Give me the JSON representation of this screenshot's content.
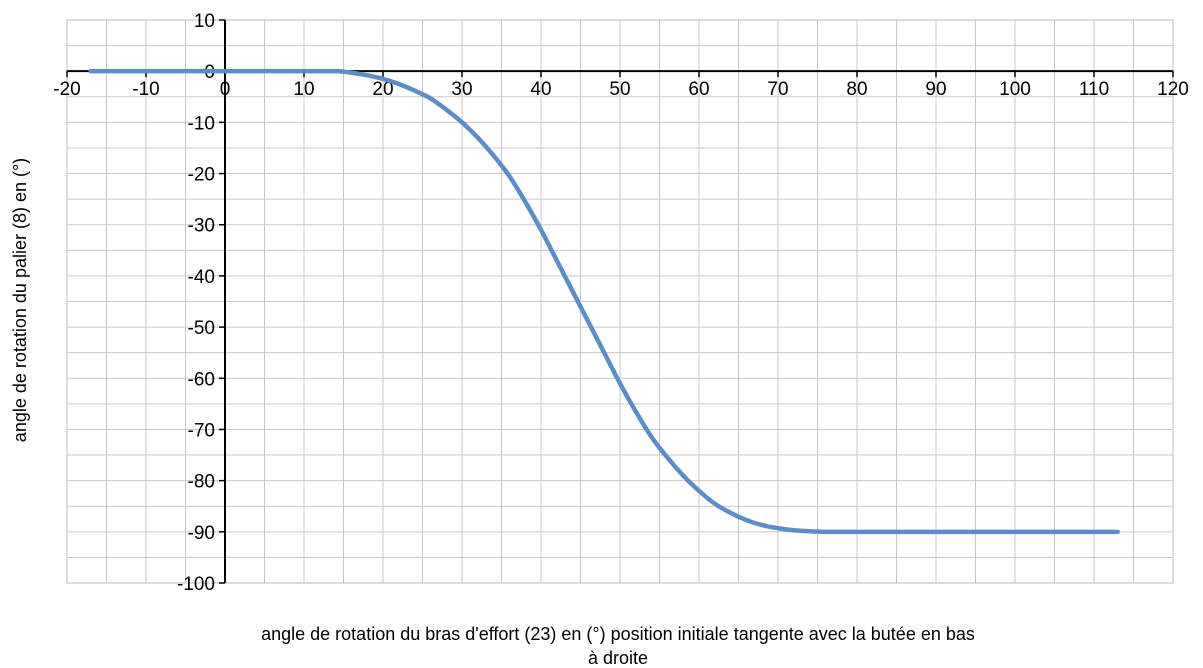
{
  "chart_data": {
    "type": "line",
    "title": "",
    "xlabel_lines": [
      "angle de rotation du bras d'effort (23) en (°) position initiale tangente avec la butée en bas",
      "à droite"
    ],
    "ylabel": "angle de rotation du palier (8) en (°)",
    "xlim": [
      -20,
      120
    ],
    "ylim": [
      -100,
      10
    ],
    "x_ticks": [
      "-20",
      "-10",
      "0",
      "10",
      "20",
      "30",
      "40",
      "50",
      "60",
      "70",
      "80",
      "90",
      "100",
      "110",
      "120"
    ],
    "y_ticks": [
      "10",
      "0",
      "-10",
      "-20",
      "-30",
      "-40",
      "-50",
      "-60",
      "-70",
      "-80",
      "-90",
      "-100"
    ],
    "minor_grid_step_x": 5,
    "minor_grid_step_y": 5,
    "grid": true,
    "legend": "none",
    "series": [
      {
        "color": "#5b8ec9",
        "points": [
          [
            -17,
            0
          ],
          [
            -10,
            0
          ],
          [
            0,
            0
          ],
          [
            10,
            0
          ],
          [
            14,
            0
          ],
          [
            16,
            -0.3
          ],
          [
            18,
            -0.8
          ],
          [
            20,
            -1.5
          ],
          [
            22,
            -2.5
          ],
          [
            24,
            -3.8
          ],
          [
            26,
            -5.3
          ],
          [
            28,
            -7.5
          ],
          [
            30,
            -10
          ],
          [
            32,
            -13
          ],
          [
            34,
            -16.5
          ],
          [
            36,
            -20.5
          ],
          [
            38,
            -25.5
          ],
          [
            40,
            -31
          ],
          [
            42,
            -37
          ],
          [
            44,
            -43
          ],
          [
            46,
            -49
          ],
          [
            48,
            -55
          ],
          [
            50,
            -61
          ],
          [
            52,
            -66.5
          ],
          [
            54,
            -71.5
          ],
          [
            56,
            -75.5
          ],
          [
            58,
            -79
          ],
          [
            60,
            -82
          ],
          [
            62,
            -84.5
          ],
          [
            64,
            -86.3
          ],
          [
            66,
            -87.7
          ],
          [
            68,
            -88.7
          ],
          [
            70,
            -89.3
          ],
          [
            72,
            -89.7
          ],
          [
            74,
            -89.9
          ],
          [
            76,
            -90
          ],
          [
            80,
            -90
          ],
          [
            90,
            -90
          ],
          [
            100,
            -90
          ],
          [
            110,
            -90
          ],
          [
            113,
            -90
          ]
        ]
      }
    ]
  }
}
